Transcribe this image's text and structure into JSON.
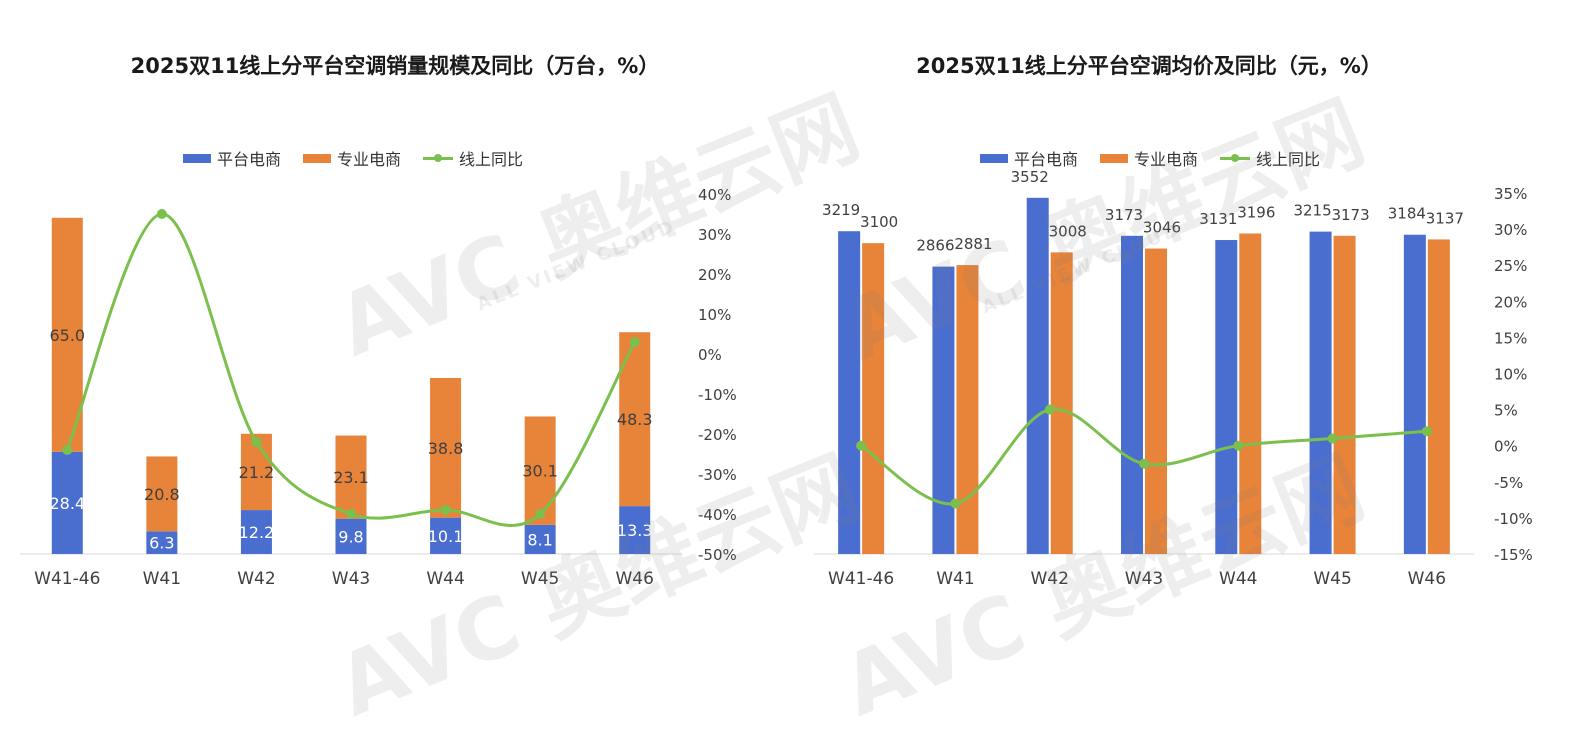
{
  "watermark": {
    "brand": "AVC 奥维云网",
    "sub": "ALL VIEW CLOUD"
  },
  "colors": {
    "platform": "#4a6ed0",
    "professional": "#e8833a",
    "yoy": "#7bbf4d"
  },
  "chart_data": [
    {
      "type": "bar",
      "stacked": true,
      "title": "2025双11线上分平台空调销量规模及同比（万台，%）",
      "categories": [
        "W41-46",
        "W41",
        "W42",
        "W43",
        "W44",
        "W45",
        "W46"
      ],
      "legend": [
        "平台电商",
        "专业电商",
        "线上同比"
      ],
      "legend_position": "top",
      "series": [
        {
          "name": "平台电商",
          "axis": "left",
          "values": [
            28.4,
            6.3,
            12.2,
            9.8,
            10.1,
            8.1,
            13.3
          ],
          "labels": [
            "28.4",
            "6.3",
            "12.2",
            "9.8",
            "10.1",
            "8.1",
            "13.3"
          ]
        },
        {
          "name": "专业电商",
          "axis": "left",
          "values": [
            65.0,
            20.8,
            21.2,
            23.1,
            38.8,
            30.1,
            48.3
          ],
          "labels": [
            "65.0",
            "20.8",
            "21.2",
            "23.1",
            "38.8",
            "30.1",
            "48.3"
          ]
        },
        {
          "name": "线上同比",
          "type": "line",
          "axis": "right",
          "values": [
            -24,
            35,
            -22,
            -40,
            -39,
            -40,
            3
          ]
        }
      ],
      "y_left_range": [
        0,
        100
      ],
      "y_right_range": [
        -50,
        40
      ],
      "y_right_ticks": [
        "40%",
        "30%",
        "20%",
        "10%",
        "0%",
        "-10%",
        "-20%",
        "-30%",
        "-40%",
        "-50%"
      ],
      "grid": false
    },
    {
      "type": "bar",
      "stacked": false,
      "title": "2025双11线上分平台空调均价及同比（元，%）",
      "categories": [
        "W41-46",
        "W41",
        "W42",
        "W43",
        "W44",
        "W45",
        "W46"
      ],
      "legend": [
        "平台电商",
        "专业电商",
        "线上同比"
      ],
      "legend_position": "top",
      "series": [
        {
          "name": "平台电商",
          "axis": "left",
          "values": [
            3219,
            2866,
            3552,
            3173,
            3131,
            3215,
            3184
          ],
          "labels": [
            "3219",
            "2866",
            "3552",
            "3173",
            "3131",
            "3215",
            "3184"
          ]
        },
        {
          "name": "专业电商",
          "axis": "left",
          "values": [
            3100,
            2881,
            3008,
            3046,
            3196,
            3173,
            3137
          ],
          "labels": [
            "3100",
            "2881",
            "3008",
            "3046",
            "3196",
            "3173",
            "3137"
          ]
        },
        {
          "name": "线上同比",
          "type": "line",
          "axis": "right",
          "values": [
            0,
            -8,
            5,
            -2.5,
            0,
            1,
            2
          ]
        }
      ],
      "y_left_range": [
        0,
        3600
      ],
      "y_right_range": [
        -15,
        35
      ],
      "y_right_ticks": [
        "35%",
        "30%",
        "25%",
        "20%",
        "15%",
        "10%",
        "5%",
        "0%",
        "-5%",
        "-10%",
        "-15%"
      ],
      "grid": false
    }
  ]
}
